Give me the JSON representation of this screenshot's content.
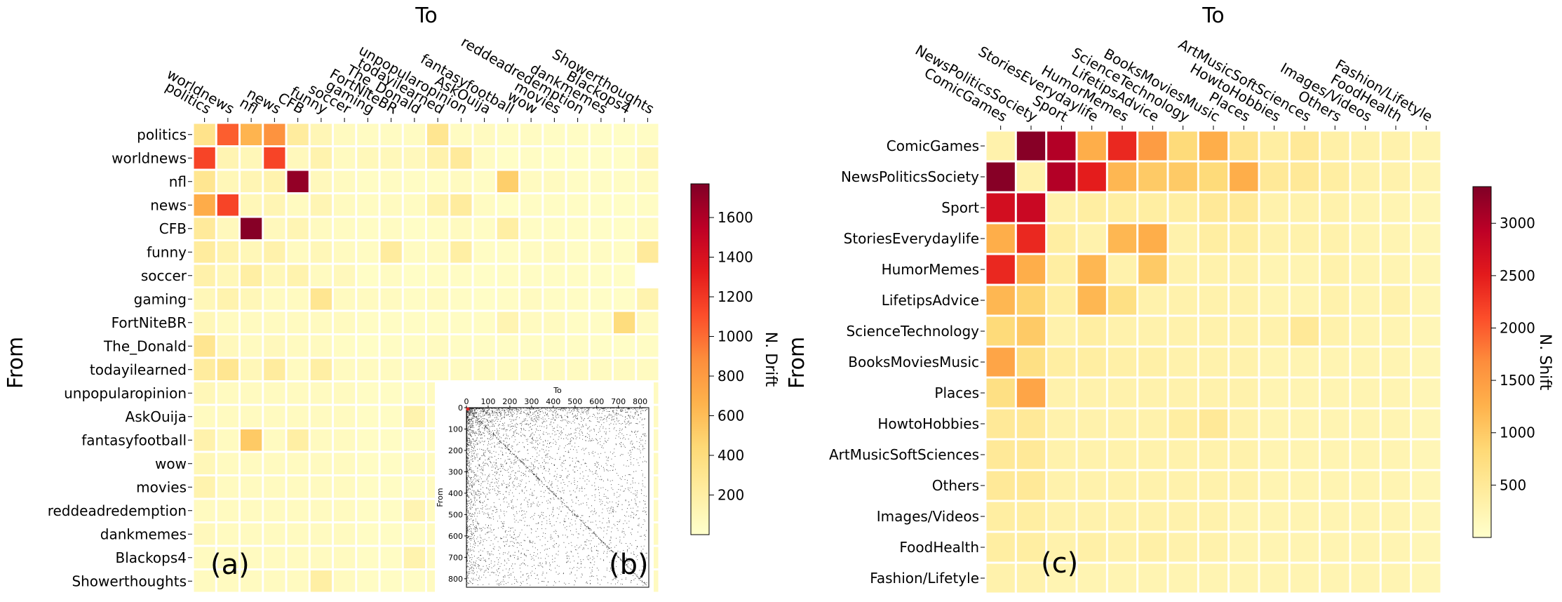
{
  "chart_data": [
    {
      "type": "heatmap",
      "panel_label": "(a)",
      "xlabel": "To",
      "ylabel": "From",
      "colorbar_label": "N. Drift",
      "colorbar_ticks": [
        200,
        400,
        600,
        800,
        1000,
        1200,
        1400,
        1600
      ],
      "vmin": 0,
      "vmax": 1770,
      "rows": [
        "politics",
        "worldnews",
        "nfl",
        "news",
        "CFB",
        "funny",
        "soccer",
        "gaming",
        "FortNiteBR",
        "The_Donald",
        "todayilearned",
        "unpopularopinion",
        "AskOuija",
        "fantasyfootball",
        "wow",
        "movies",
        "reddeadredemption",
        "dankmemes",
        "Blackops4",
        "Showerthoughts"
      ],
      "columns": [
        "politics",
        "worldnews",
        "nfl",
        "news",
        "CFB",
        "funny",
        "soccer",
        "gaming",
        "FortNiteBR",
        "The_Donald",
        "todayilearned",
        "unpopularopinion",
        "AskOuija",
        "fantasyfootball",
        "wow",
        "movies",
        "reddeadredemption",
        "dankmemes",
        "Blackops4",
        "Showerthoughts"
      ],
      "values": [
        [
          330,
          1050,
          650,
          850,
          230,
          110,
          60,
          50,
          50,
          50,
          300,
          50,
          60,
          40,
          50,
          40,
          40,
          30,
          30,
          40
        ],
        [
          1150,
          130,
          100,
          1150,
          80,
          150,
          60,
          90,
          90,
          80,
          160,
          250,
          50,
          30,
          40,
          30,
          30,
          30,
          30,
          100
        ],
        [
          300,
          100,
          120,
          150,
          1700,
          80,
          60,
          40,
          50,
          40,
          40,
          60,
          40,
          500,
          60,
          60,
          40,
          40,
          40,
          60
        ],
        [
          700,
          1150,
          100,
          120,
          60,
          120,
          60,
          50,
          60,
          50,
          150,
          230,
          50,
          30,
          40,
          40,
          40,
          30,
          30,
          40
        ],
        [
          250,
          80,
          1750,
          80,
          120,
          60,
          50,
          40,
          50,
          30,
          40,
          60,
          40,
          200,
          40,
          40,
          40,
          30,
          30,
          60
        ],
        [
          230,
          150,
          100,
          160,
          60,
          100,
          60,
          50,
          230,
          50,
          60,
          200,
          40,
          40,
          50,
          60,
          40,
          50,
          40,
          250
        ],
        [
          170,
          100,
          200,
          100,
          150,
          60,
          80,
          30,
          50,
          30,
          40,
          40,
          30,
          40,
          40,
          40,
          40,
          30,
          30,
          0
        ],
        [
          100,
          150,
          100,
          60,
          60,
          300,
          60,
          60,
          60,
          40,
          60,
          40,
          30,
          40,
          60,
          40,
          40,
          30,
          30,
          150
        ],
        [
          100,
          60,
          60,
          60,
          60,
          60,
          60,
          40,
          40,
          40,
          40,
          40,
          40,
          130,
          60,
          60,
          40,
          40,
          400,
          60
        ],
        [
          300,
          80,
          60,
          80,
          60,
          60,
          40,
          30,
          40,
          40,
          60,
          40,
          40,
          40,
          40,
          40,
          40,
          30,
          30,
          40
        ],
        [
          230,
          300,
          100,
          230,
          60,
          200,
          60,
          60,
          60,
          60,
          60,
          60,
          60,
          60,
          60,
          60,
          60,
          60,
          60,
          60
        ],
        [
          100,
          60,
          60,
          60,
          60,
          60,
          60,
          40,
          40,
          40,
          60,
          60,
          40,
          60,
          60,
          60,
          60,
          60,
          60,
          60
        ],
        [
          60,
          60,
          60,
          60,
          60,
          60,
          60,
          40,
          40,
          150,
          60,
          60,
          40,
          60,
          60,
          60,
          60,
          60,
          60,
          60
        ],
        [
          160,
          60,
          530,
          60,
          200,
          60,
          60,
          40,
          40,
          40,
          60,
          60,
          40,
          60,
          60,
          60,
          60,
          60,
          60,
          60
        ],
        [
          100,
          60,
          60,
          60,
          60,
          60,
          60,
          40,
          40,
          60,
          60,
          60,
          40,
          60,
          60,
          60,
          60,
          60,
          60,
          60
        ],
        [
          150,
          60,
          60,
          60,
          60,
          60,
          60,
          40,
          40,
          40,
          60,
          60,
          40,
          60,
          60,
          60,
          60,
          60,
          60,
          60
        ],
        [
          60,
          60,
          60,
          60,
          60,
          60,
          60,
          40,
          40,
          130,
          60,
          60,
          40,
          60,
          60,
          60,
          60,
          60,
          60,
          60
        ],
        [
          80,
          60,
          60,
          60,
          60,
          60,
          60,
          40,
          40,
          40,
          60,
          60,
          40,
          60,
          60,
          60,
          60,
          60,
          60,
          60
        ],
        [
          60,
          60,
          60,
          60,
          60,
          60,
          60,
          40,
          40,
          150,
          60,
          60,
          40,
          60,
          60,
          60,
          60,
          60,
          60,
          60
        ],
        [
          60,
          60,
          60,
          60,
          60,
          200,
          60,
          40,
          40,
          40,
          60,
          60,
          40,
          60,
          60,
          60,
          60,
          60,
          60,
          60
        ]
      ]
    },
    {
      "type": "scatter",
      "panel_label": "(b)",
      "xlabel": "To",
      "ylabel": "From",
      "xlim": [
        0,
        840
      ],
      "ylim": [
        0,
        840
      ],
      "y_inverted": true,
      "x_ticks": [
        0,
        100,
        200,
        300,
        400,
        500,
        600,
        700,
        800
      ],
      "y_ticks": [
        0,
        100,
        200,
        300,
        400,
        500,
        600,
        700,
        800
      ],
      "description_of_pattern": "dense near origin, sparse elsewhere, faint diagonal"
    },
    {
      "type": "heatmap",
      "panel_label": "(c)",
      "xlabel": "To",
      "ylabel": "From",
      "colorbar_label": "N. Shift",
      "colorbar_ticks": [
        500,
        1000,
        1500,
        2000,
        2500,
        3000
      ],
      "vmin": 0,
      "vmax": 3350,
      "rows": [
        "ComicGames",
        "NewsPoliticsSociety",
        "Sport",
        "StoriesEverydaylife",
        "HumorMemes",
        "LifetipsAdvice",
        "ScienceTechnology",
        "BooksMoviesMusic",
        "Places",
        "HowtoHobbies",
        "ArtMusicSoftSciences",
        "Others",
        "Images/Videos",
        "FoodHealth",
        "Fashion/Lifetyle"
      ],
      "columns": [
        "ComicGames",
        "NewsPoliticsSociety",
        "Sport",
        "StoriesEverydaylife",
        "HumorMemes",
        "LifetipsAdvice",
        "ScienceTechnology",
        "BooksMoviesMusic",
        "Places",
        "HowtoHobbies",
        "ArtMusicSoftSciences",
        "Others",
        "Images/Videos",
        "FoodHealth",
        "Fashion/Lifetyle"
      ],
      "values": [
        [
          300,
          3300,
          3000,
          1300,
          2400,
          1500,
          800,
          1300,
          600,
          400,
          500,
          350,
          300,
          300,
          250
        ],
        [
          3300,
          300,
          3000,
          2500,
          1200,
          1000,
          1000,
          800,
          1300,
          500,
          500,
          400,
          300,
          300,
          250
        ],
        [
          2700,
          2800,
          300,
          400,
          400,
          400,
          400,
          500,
          500,
          300,
          300,
          300,
          250,
          250,
          200
        ],
        [
          1300,
          2400,
          400,
          300,
          1200,
          1300,
          300,
          400,
          400,
          300,
          300,
          300,
          250,
          250,
          200
        ],
        [
          2400,
          1300,
          400,
          1200,
          300,
          1000,
          300,
          300,
          300,
          250,
          250,
          300,
          250,
          250,
          200
        ],
        [
          1200,
          900,
          400,
          1200,
          700,
          300,
          300,
          300,
          300,
          250,
          250,
          300,
          250,
          300,
          200
        ],
        [
          800,
          1000,
          300,
          400,
          300,
          300,
          300,
          300,
          300,
          300,
          500,
          300,
          250,
          250,
          200
        ],
        [
          1400,
          700,
          400,
          400,
          350,
          350,
          300,
          300,
          300,
          250,
          250,
          250,
          250,
          250,
          200
        ],
        [
          700,
          1400,
          300,
          300,
          300,
          300,
          300,
          300,
          300,
          250,
          250,
          250,
          250,
          250,
          200
        ],
        [
          500,
          500,
          300,
          300,
          300,
          300,
          400,
          500,
          300,
          250,
          250,
          250,
          250,
          250,
          200
        ],
        [
          500,
          500,
          300,
          300,
          300,
          300,
          300,
          300,
          300,
          250,
          250,
          250,
          250,
          250,
          200
        ],
        [
          500,
          500,
          300,
          300,
          300,
          300,
          300,
          300,
          300,
          250,
          250,
          250,
          250,
          250,
          200
        ],
        [
          400,
          400,
          300,
          300,
          300,
          300,
          300,
          300,
          250,
          250,
          250,
          250,
          250,
          250,
          200
        ],
        [
          400,
          400,
          300,
          350,
          300,
          350,
          300,
          300,
          250,
          250,
          250,
          250,
          250,
          250,
          200
        ],
        [
          300,
          300,
          250,
          250,
          250,
          250,
          250,
          250,
          250,
          250,
          250,
          250,
          250,
          250,
          200
        ]
      ]
    }
  ]
}
